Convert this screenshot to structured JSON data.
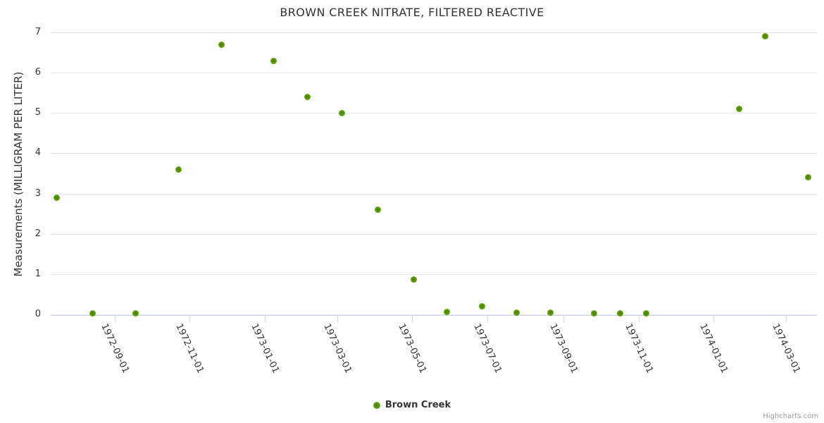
{
  "title": "BROWN CREEK NITRATE, FILTERED REACTIVE",
  "legend": {
    "label": "Brown Creek"
  },
  "credit": "Highcharts.com",
  "colors": {
    "marker_outer": "#82c22a",
    "marker_inner": "#477d00",
    "grid": "#e6e6e6",
    "axis_line": "#ccd6eb",
    "text": "#333333",
    "credit_text": "#999999"
  },
  "chart_data": {
    "type": "scatter",
    "title": "BROWN CREEK NITRATE, FILTERED REACTIVE",
    "xlabel": "",
    "ylabel": "Measurements (MILLIGRAM PER LITER)",
    "ylim": [
      0,
      7
    ],
    "y_ticks": [
      0,
      1,
      2,
      3,
      4,
      5,
      6,
      7
    ],
    "x_ticks": [
      "1972-09-01",
      "1972-11-01",
      "1973-01-01",
      "1973-03-01",
      "1973-05-01",
      "1973-07-01",
      "1973-09-01",
      "1973-11-01",
      "1974-01-01",
      "1974-03-01"
    ],
    "x_range": [
      "1972-07-11",
      "1974-03-26"
    ],
    "grid": true,
    "legend_position": "bottom",
    "series": [
      {
        "name": "Brown Creek",
        "points": [
          {
            "date": "1972-07-16",
            "value": 2.9
          },
          {
            "date": "1972-08-14",
            "value": 0.02
          },
          {
            "date": "1972-09-18",
            "value": 0.03
          },
          {
            "date": "1972-10-23",
            "value": 3.6
          },
          {
            "date": "1972-11-27",
            "value": 6.7
          },
          {
            "date": "1973-01-08",
            "value": 6.3
          },
          {
            "date": "1973-02-05",
            "value": 5.4
          },
          {
            "date": "1973-03-05",
            "value": 5.0
          },
          {
            "date": "1973-04-03",
            "value": 2.6
          },
          {
            "date": "1973-05-02",
            "value": 0.87
          },
          {
            "date": "1973-05-29",
            "value": 0.06
          },
          {
            "date": "1973-06-27",
            "value": 0.2
          },
          {
            "date": "1973-07-25",
            "value": 0.05
          },
          {
            "date": "1973-08-21",
            "value": 0.04
          },
          {
            "date": "1973-09-26",
            "value": 0.03
          },
          {
            "date": "1973-10-17",
            "value": 0.03
          },
          {
            "date": "1973-11-07",
            "value": 0.02
          },
          {
            "date": "1974-01-22",
            "value": 5.1
          },
          {
            "date": "1974-02-12",
            "value": 6.9
          },
          {
            "date": "1974-03-19",
            "value": 3.4
          }
        ]
      }
    ]
  }
}
